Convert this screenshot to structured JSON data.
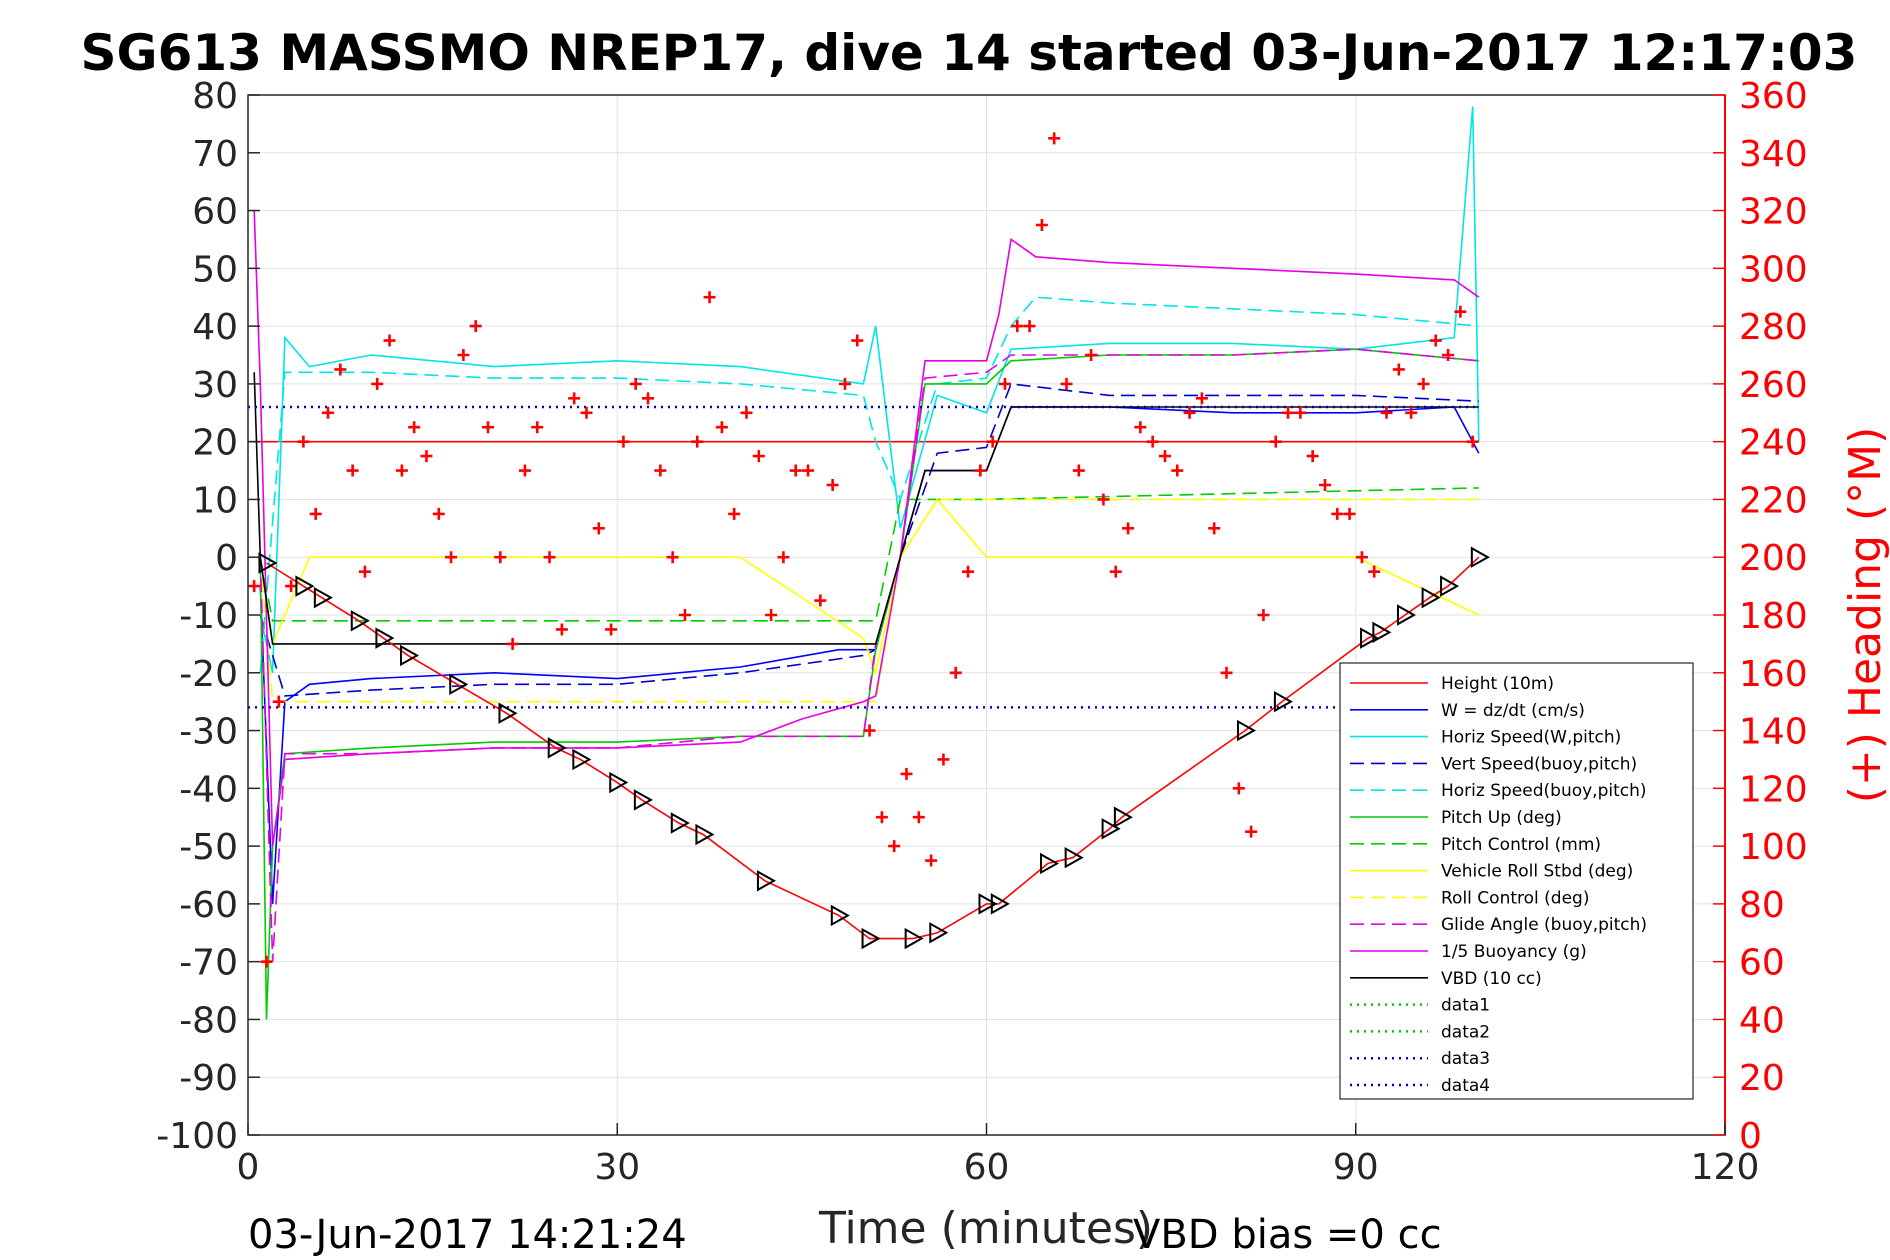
{
  "chart_data": {
    "type": "line",
    "title": "SG613 MASSMO NREP17, dive 14 started 03-Jun-2017 12:17:03",
    "xlabel": "Time (minutes)",
    "ylabel_right": "(+) Heading (°M)",
    "xlim": [
      0,
      120
    ],
    "ylim": [
      -100,
      80
    ],
    "ylim_right": [
      0,
      360
    ],
    "xticks": [
      0,
      30,
      60,
      90,
      120
    ],
    "yticks": [
      80,
      70,
      60,
      50,
      40,
      30,
      20,
      10,
      0,
      -10,
      -20,
      -30,
      -40,
      -50,
      -60,
      -70,
      -80,
      -90,
      -100
    ],
    "yticks_right": [
      360,
      340,
      320,
      300,
      280,
      260,
      240,
      220,
      200,
      180,
      160,
      140,
      120,
      100,
      80,
      60,
      40,
      20,
      0
    ],
    "grid": true,
    "legend_position": "lower-right",
    "footer_left": "03-Jun-2017 14:21:24",
    "footer_right": "VBD bias =0 cc",
    "colors": {
      "left_axis": "#262626",
      "right_axis": "#ff0000",
      "heading_marker": "#ff0000",
      "depth_marker": "#000000"
    },
    "series": [
      {
        "name": "Height (10m)",
        "color": "#ff0000",
        "style": "solid",
        "x": [
          0,
          100
        ],
        "y": [
          20,
          20
        ]
      },
      {
        "name": "W = dz/dt (cm/s)",
        "color": "#0000ff",
        "style": "solid",
        "x": [
          1,
          2,
          3,
          5,
          10,
          20,
          30,
          40,
          48,
          51,
          53,
          55,
          58,
          60,
          62,
          70,
          80,
          90,
          98,
          100
        ],
        "y": [
          -5,
          -60,
          -25,
          -22,
          -21,
          -20,
          -21,
          -19,
          -16,
          -16,
          0,
          15,
          15,
          15,
          26,
          26,
          25,
          25,
          26,
          18
        ]
      },
      {
        "name": "Horiz Speed(W,pitch)",
        "color": "#00e5e5",
        "style": "solid",
        "x": [
          1,
          2,
          3,
          5,
          10,
          20,
          30,
          40,
          50,
          51,
          53,
          56,
          60,
          62,
          70,
          80,
          90,
          98,
          99.5,
          100
        ],
        "y": [
          -10,
          -20,
          38,
          33,
          35,
          33,
          34,
          33,
          30,
          40,
          5,
          28,
          25,
          36,
          37,
          37,
          36,
          38,
          78,
          20
        ]
      },
      {
        "name": "Vert Speed(buoy,pitch)",
        "color": "#0000cc",
        "style": "dashed",
        "x": [
          1,
          3,
          10,
          20,
          30,
          40,
          50,
          51,
          53,
          56,
          60,
          62,
          70,
          80,
          90,
          100
        ],
        "y": [
          -10,
          -24,
          -23,
          -22,
          -22,
          -20,
          -17,
          -16,
          0,
          18,
          19,
          30,
          28,
          28,
          28,
          27
        ]
      },
      {
        "name": "Horiz Speed(buoy,pitch)",
        "color": "#00e5e5",
        "style": "dashed",
        "x": [
          1,
          3,
          10,
          20,
          30,
          40,
          50,
          51,
          53,
          56,
          60,
          62,
          64,
          70,
          80,
          90,
          100
        ],
        "y": [
          -20,
          32,
          32,
          31,
          31,
          30,
          28,
          20,
          10,
          30,
          31,
          40,
          45,
          44,
          43,
          42,
          40
        ]
      },
      {
        "name": "Pitch Up (deg)",
        "color": "#00cc00",
        "style": "solid",
        "x": [
          1,
          1.5,
          2,
          3,
          10,
          20,
          30,
          40,
          50,
          51,
          53,
          55,
          60,
          62,
          70,
          80,
          90,
          100
        ],
        "y": [
          0,
          -80,
          -50,
          -34,
          -33,
          -32,
          -32,
          -31,
          -31,
          -16,
          0,
          30,
          30,
          34,
          35,
          35,
          36,
          34
        ]
      },
      {
        "name": "Pitch Control (mm)",
        "color": "#00cc00",
        "style": "dashed",
        "x": [
          1,
          2,
          30,
          51,
          53,
          60,
          100
        ],
        "y": [
          0,
          -11,
          -11,
          -11,
          10,
          10,
          12
        ]
      },
      {
        "name": "Vehicle Roll Stbd (deg)",
        "color": "#ffff00",
        "style": "solid",
        "x": [
          1,
          2,
          5,
          10,
          20,
          30,
          40,
          50,
          51,
          53,
          56,
          60,
          62,
          70,
          80,
          90,
          100
        ],
        "y": [
          0,
          -15,
          0,
          0,
          0,
          0,
          0,
          -14,
          -20,
          0,
          10,
          0,
          0,
          0,
          0,
          0,
          -10
        ]
      },
      {
        "name": "Roll Control (deg)",
        "color": "#ffff00",
        "style": "dashed",
        "x": [
          1,
          2,
          30,
          51,
          53,
          56,
          60,
          100
        ],
        "y": [
          0,
          -25,
          -25,
          -25,
          0,
          10,
          10,
          10
        ]
      },
      {
        "name": "Glide Angle (buoy,pitch)",
        "color": "#e500e5",
        "style": "dashed",
        "x": [
          1,
          2,
          3,
          10,
          20,
          30,
          40,
          50,
          51,
          53,
          55,
          60,
          62,
          70,
          80,
          90,
          100
        ],
        "y": [
          0,
          -70,
          -34,
          -34,
          -33,
          -33,
          -31,
          -31,
          -15,
          0,
          31,
          32,
          35,
          35,
          35,
          36,
          34
        ]
      },
      {
        "name": "1/5 Buoyancy (g)",
        "color": "#e500e5",
        "style": "solid",
        "x": [
          0.5,
          1,
          2,
          3,
          10,
          20,
          30,
          40,
          45,
          50,
          51,
          53,
          55,
          60,
          61,
          62,
          64,
          70,
          80,
          90,
          98,
          100
        ],
        "y": [
          60,
          30,
          -50,
          -35,
          -34,
          -33,
          -33,
          -32,
          -28,
          -25,
          -24,
          0,
          34,
          34,
          42,
          55,
          52,
          51,
          50,
          49,
          48,
          45
        ]
      },
      {
        "name": "VBD (10 cc)",
        "color": "#000000",
        "style": "solid",
        "x": [
          0.5,
          1,
          2,
          10,
          20,
          30,
          40,
          50,
          51,
          53,
          55,
          60,
          62,
          70,
          80,
          90,
          100
        ],
        "y": [
          32,
          0,
          -15,
          -15,
          -15,
          -15,
          -15,
          -15,
          -15,
          0,
          15,
          15,
          26,
          26,
          26,
          26,
          26
        ]
      },
      {
        "name": "data1",
        "color": "#00cc00",
        "style": "dotted",
        "x": [],
        "y": []
      },
      {
        "name": "data2",
        "color": "#00cc00",
        "style": "dotted",
        "x": [],
        "y": []
      },
      {
        "name": "data3",
        "color": "#0000cc",
        "style": "dotted",
        "x": [
          0,
          100
        ],
        "y": [
          26,
          26
        ]
      },
      {
        "name": "data4",
        "color": "#0000cc",
        "style": "dotted",
        "x": [
          0,
          100
        ],
        "y": [
          -26,
          -26
        ]
      }
    ],
    "depth_trace": {
      "name": "depth",
      "color": "#ff0000",
      "x": [
        1.5,
        4.5,
        6,
        9,
        11,
        13,
        17,
        21,
        25,
        27,
        30,
        32,
        35,
        37,
        42,
        48,
        50.5,
        54,
        56,
        60,
        61,
        65,
        67,
        70,
        71,
        81,
        84,
        91,
        92,
        94,
        96,
        97.5,
        100
      ],
      "y": [
        -1,
        -5,
        -7,
        -11,
        -14,
        -17,
        -22,
        -27,
        -33,
        -35,
        -39,
        -42,
        -46,
        -48,
        -56,
        -62,
        -66,
        -66,
        -65,
        -60,
        -60,
        -53,
        -52,
        -47,
        -45,
        -30,
        -25,
        -14,
        -13,
        -10,
        -7,
        -5,
        0
      ]
    },
    "heading_trace": {
      "name": "heading",
      "axis": "right",
      "x": [
        0.5,
        1.5,
        2.5,
        3.5,
        4.5,
        5.5,
        6.5,
        7.5,
        8.5,
        9.5,
        10.5,
        11.5,
        12.5,
        13.5,
        14.5,
        15.5,
        16.5,
        17.5,
        18.5,
        19.5,
        20.5,
        21.5,
        22.5,
        23.5,
        24.5,
        25.5,
        26.5,
        27.5,
        28.5,
        29.5,
        30.5,
        31.5,
        32.5,
        33.5,
        34.5,
        35.5,
        36.5,
        37.5,
        38.5,
        39.5,
        40.5,
        41.5,
        42.5,
        43.5,
        44.5,
        45.5,
        46.5,
        47.5,
        48.5,
        49.5,
        50.5,
        51.5,
        52.5,
        53.5,
        54.5,
        55.5,
        56.5,
        57.5,
        58.5,
        59.5,
        60.5,
        61.5,
        62.5,
        63.5,
        64.5,
        65.5,
        66.5,
        67.5,
        68.5,
        69.5,
        70.5,
        71.5,
        72.5,
        73.5,
        74.5,
        75.5,
        76.5,
        77.5,
        78.5,
        79.5,
        80.5,
        81.5,
        82.5,
        83.5,
        84.5,
        85.5,
        86.5,
        87.5,
        88.5,
        89.5,
        90.5,
        91.5,
        92.5,
        93.5,
        94.5,
        95.5,
        96.5,
        97.5,
        98.5,
        99.5
      ],
      "y": [
        190,
        60,
        150,
        190,
        240,
        215,
        250,
        265,
        230,
        195,
        260,
        275,
        230,
        245,
        235,
        215,
        200,
        270,
        280,
        245,
        200,
        170,
        230,
        245,
        200,
        175,
        255,
        250,
        210,
        175,
        240,
        260,
        255,
        230,
        200,
        180,
        240,
        290,
        245,
        215,
        250,
        235,
        180,
        200,
        230,
        230,
        185,
        225,
        260,
        275,
        140,
        110,
        100,
        125,
        110,
        95,
        130,
        160,
        195,
        230,
        240,
        260,
        280,
        280,
        315,
        345,
        260,
        230,
        270,
        220,
        195,
        210,
        245,
        240,
        235,
        230,
        250,
        255,
        210,
        160,
        120,
        105,
        180,
        240,
        250,
        250,
        235,
        225,
        215,
        215,
        200,
        195,
        250,
        265,
        250,
        260,
        275,
        270,
        285,
        240
      ]
    }
  }
}
